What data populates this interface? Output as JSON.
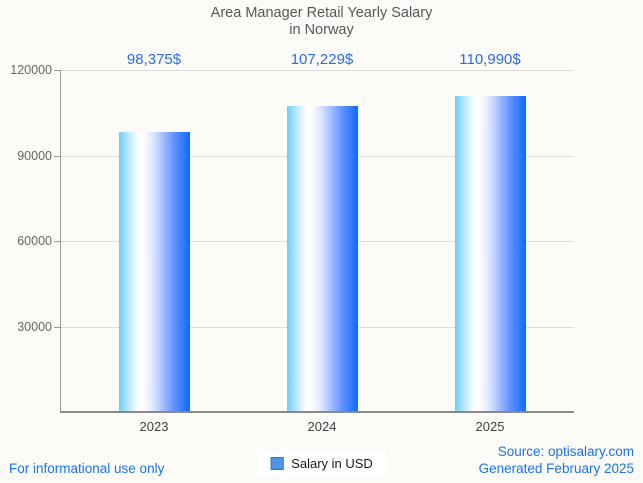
{
  "title": {
    "line1": "Area Manager Retail Yearly Salary",
    "line2": "in Norway"
  },
  "chart_data": {
    "type": "bar",
    "title": "Area Manager Retail Yearly Salary in Norway",
    "categories": [
      "2023",
      "2024",
      "2025"
    ],
    "series": [
      {
        "name": "Salary in USD",
        "values": [
          98375,
          107229,
          110990
        ]
      }
    ],
    "value_labels": [
      "98,375$",
      "107,229$",
      "110,990$"
    ],
    "xlabel": "",
    "ylabel": "",
    "ylim": [
      0,
      120000
    ],
    "yticks": [
      30000,
      60000,
      90000,
      120000
    ],
    "ytick_labels": [
      "30000",
      "60000",
      "90000",
      "120000"
    ],
    "grid": true,
    "legend_position": "bottom",
    "bar_gradient": [
      "#6fccfe",
      "#ffffff",
      "#0b6bfe"
    ]
  },
  "legend": {
    "label": "Salary in USD"
  },
  "footer": {
    "disclaimer": "For informational use only",
    "source_line1": "Source: optisalary.com",
    "source_line2": "Generated February 2025"
  },
  "colors": {
    "background": "#fcfbf7",
    "title_gray": "#58585a",
    "annotation_blue": "#2a6de0",
    "footer_blue": "#1a73e8",
    "legend_swatch_fill": "#4e93e6",
    "legend_swatch_border": "#3a70c9",
    "axis_gray": "#8a8a8a",
    "gridline_gray": "#dedcd8"
  }
}
